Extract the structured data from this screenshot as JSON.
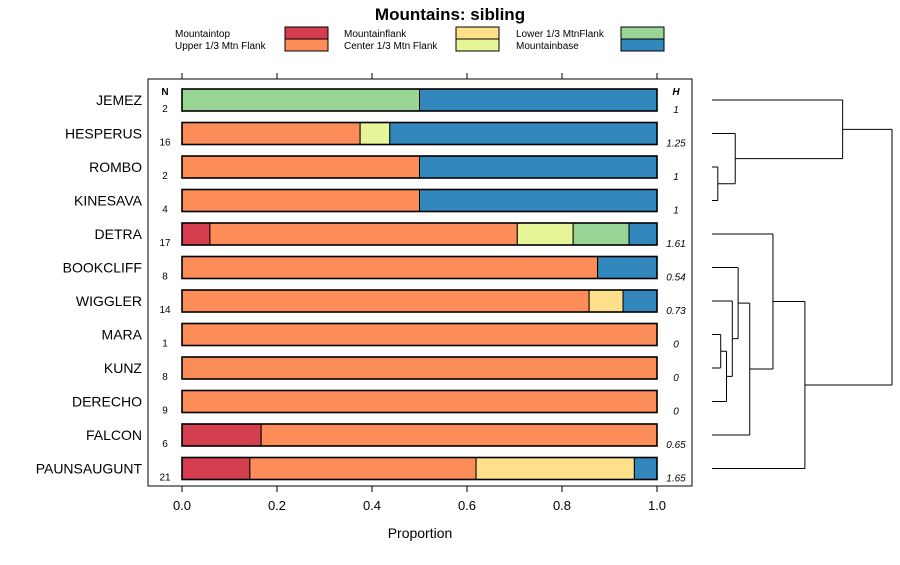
{
  "chart_data": {
    "type": "stacked-bar-horizontal",
    "title": "Mountains: sibling",
    "xlabel": "Proportion",
    "xlim": [
      0,
      1
    ],
    "xticks": [
      "0.0",
      "0.2",
      "0.4",
      "0.6",
      "0.8",
      "1.0"
    ],
    "n_header": "N",
    "h_header": "H",
    "legend": [
      {
        "name": "Mountaintop",
        "color": "#d53e4f"
      },
      {
        "name": "Upper 1/3 Mtn Flank",
        "color": "#fc8d59"
      },
      {
        "name": "Mountainflank",
        "color": "#fee08b"
      },
      {
        "name": "Center 1/3 Mtn Flank",
        "color": "#e6f598"
      },
      {
        "name": "Lower 1/3 MtnFlank",
        "color": "#99d594"
      },
      {
        "name": "Mountainbase",
        "color": "#3288bd"
      }
    ],
    "rows": [
      {
        "label": "JEMEZ",
        "n": "2",
        "h": "1",
        "values": [
          0,
          0,
          0,
          0,
          0.5,
          0.5
        ]
      },
      {
        "label": "HESPERUS",
        "n": "16",
        "h": "1.25",
        "values": [
          0,
          0.375,
          0,
          0.0625,
          0,
          0.5625
        ]
      },
      {
        "label": "ROMBO",
        "n": "2",
        "h": "1",
        "values": [
          0,
          0.5,
          0,
          0,
          0,
          0.5
        ]
      },
      {
        "label": "KINESAVA",
        "n": "4",
        "h": "1",
        "values": [
          0,
          0.5,
          0,
          0,
          0,
          0.5
        ]
      },
      {
        "label": "DETRA",
        "n": "17",
        "h": "1.61",
        "values": [
          0.0588,
          0.6471,
          0,
          0.1176,
          0.1176,
          0.0588
        ]
      },
      {
        "label": "BOOKCLIFF",
        "n": "8",
        "h": "0.54",
        "values": [
          0,
          0.875,
          0,
          0,
          0,
          0.125
        ]
      },
      {
        "label": "WIGGLER",
        "n": "14",
        "h": "0.73",
        "values": [
          0,
          0.8571,
          0.0714,
          0,
          0,
          0.0714
        ]
      },
      {
        "label": "MARA",
        "n": "1",
        "h": "0",
        "values": [
          0,
          1,
          0,
          0,
          0,
          0
        ]
      },
      {
        "label": "KUNZ",
        "n": "8",
        "h": "0",
        "values": [
          0,
          1,
          0,
          0,
          0,
          0
        ]
      },
      {
        "label": "DERECHO",
        "n": "9",
        "h": "0",
        "values": [
          0,
          1,
          0,
          0,
          0,
          0
        ]
      },
      {
        "label": "FALCON",
        "n": "6",
        "h": "0.65",
        "values": [
          0.1667,
          0.8333,
          0,
          0,
          0,
          0
        ]
      },
      {
        "label": "PAUNSAUGUNT",
        "n": "21",
        "h": "1.65",
        "values": [
          0.1429,
          0.4762,
          0.3333,
          0,
          0,
          0.0476
        ]
      }
    ],
    "dendrogram": {
      "merges": [
        {
          "a": "KINESAVA",
          "b": "ROMBO",
          "height": 0.02
        },
        {
          "a": "MARA",
          "b": "KUNZ",
          "height": 0.03
        },
        {
          "a": "m1",
          "b": "DERECHO",
          "height": 0.05
        },
        {
          "a": "m2",
          "b": "WIGGLER",
          "height": 0.07
        },
        {
          "a": "m0",
          "b": "HESPERUS",
          "height": 0.08
        },
        {
          "a": "BOOKCLIFF",
          "b": "m3",
          "height": 0.09
        },
        {
          "a": "m5",
          "b": "FALCON",
          "height": 0.13
        },
        {
          "a": "DETRA",
          "b": "m6",
          "height": 0.21
        },
        {
          "a": "m7",
          "b": "PAUNSAUGUNT",
          "height": 0.32
        },
        {
          "a": "JEMEZ",
          "b": "m4",
          "height": 0.45
        },
        {
          "a": "m9",
          "b": "m8",
          "height": 0.62
        }
      ],
      "max_height": 0.62
    }
  }
}
